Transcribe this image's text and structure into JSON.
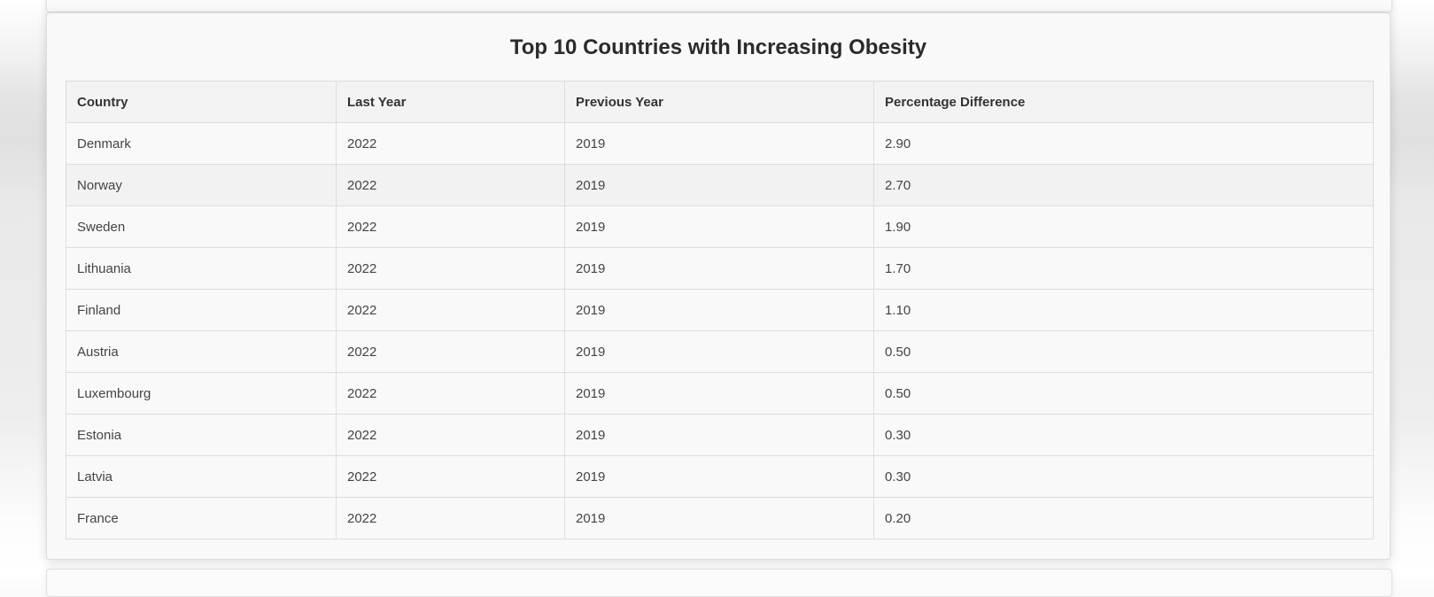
{
  "title": "Top 10 Countries with Increasing Obesity",
  "table": {
    "headers": [
      "Country",
      "Last Year",
      "Previous Year",
      "Percentage Difference"
    ],
    "rows": [
      [
        "Denmark",
        "2022",
        "2019",
        "2.90"
      ],
      [
        "Norway",
        "2022",
        "2019",
        "2.70"
      ],
      [
        "Sweden",
        "2022",
        "2019",
        "1.90"
      ],
      [
        "Lithuania",
        "2022",
        "2019",
        "1.70"
      ],
      [
        "Finland",
        "2022",
        "2019",
        "1.10"
      ],
      [
        "Austria",
        "2022",
        "2019",
        "0.50"
      ],
      [
        "Luxembourg",
        "2022",
        "2019",
        "0.50"
      ],
      [
        "Estonia",
        "2022",
        "2019",
        "0.30"
      ],
      [
        "Latvia",
        "2022",
        "2019",
        "0.30"
      ],
      [
        "France",
        "2022",
        "2019",
        "0.20"
      ]
    ]
  }
}
